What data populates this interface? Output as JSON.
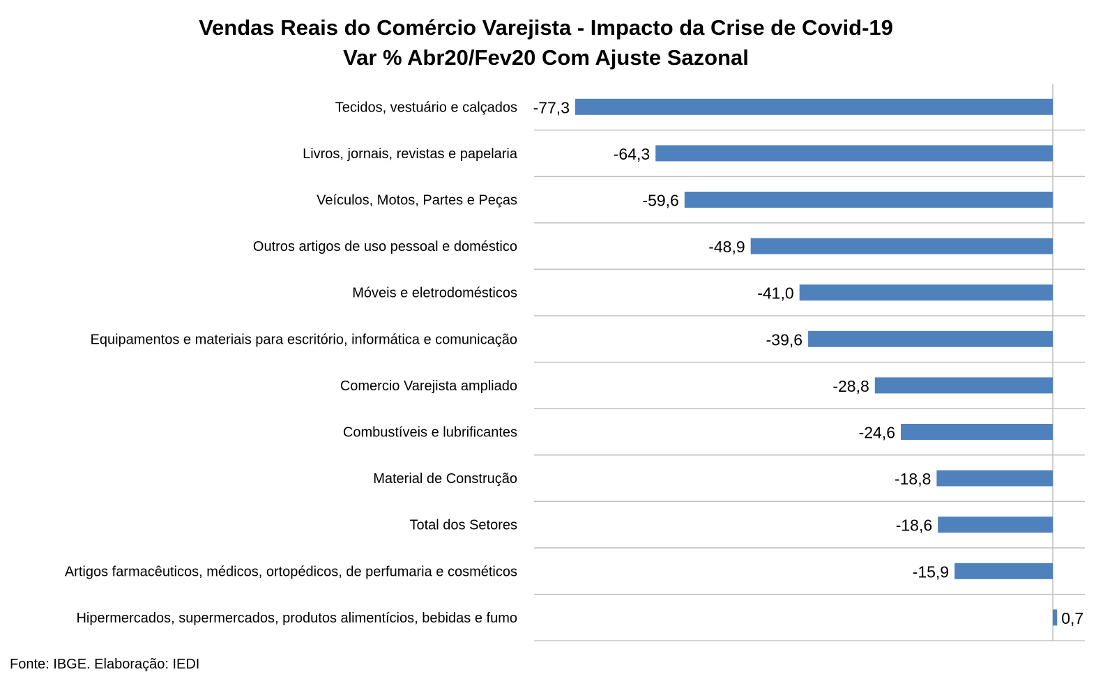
{
  "chart_data": {
    "type": "bar",
    "orientation": "horizontal",
    "title": "Vendas Reais do Comércio Varejista - Impacto da Crise de Covid-19",
    "subtitle": "Var % Abr20/Fev20 Com Ajuste Sazonal",
    "categories": [
      "Tecidos, vestuário e calçados",
      "Livros, jornais, revistas e papelaria",
      "Veículos, Motos, Partes e Peças",
      "Outros artigos de uso pessoal e doméstico",
      "Móveis e eletrodomésticos",
      "Equipamentos e materiais para escritório, informática e comunicação",
      "Comercio Varejista ampliado",
      "Combustíveis e lubrificantes",
      "Material de Construção",
      "Total dos Setores",
      "Artigos farmacêuticos, médicos, ortopédicos, de perfumaria e cosméticos",
      "Hipermercados, supermercados, produtos alimentícios, bebidas e fumo"
    ],
    "values": [
      -77.3,
      -64.3,
      -59.6,
      -48.9,
      -41.0,
      -39.6,
      -28.8,
      -24.6,
      -18.8,
      -18.6,
      -15.9,
      0.7
    ],
    "data_labels": [
      "-77,3",
      "-64,3",
      "-59,6",
      "-48,9",
      "-41,0",
      "-39,6",
      "-28,8",
      "-24,6",
      "-18,8",
      "-18,6",
      "-15,9",
      "0,7"
    ],
    "xlim": [
      -84,
      5.5
    ],
    "grid": true,
    "legend": false,
    "bar_color": "#4F81BD",
    "gridline_color": "#BFBFBF"
  },
  "source_note": "Fonte: IBGE. Elaboração: IEDI"
}
